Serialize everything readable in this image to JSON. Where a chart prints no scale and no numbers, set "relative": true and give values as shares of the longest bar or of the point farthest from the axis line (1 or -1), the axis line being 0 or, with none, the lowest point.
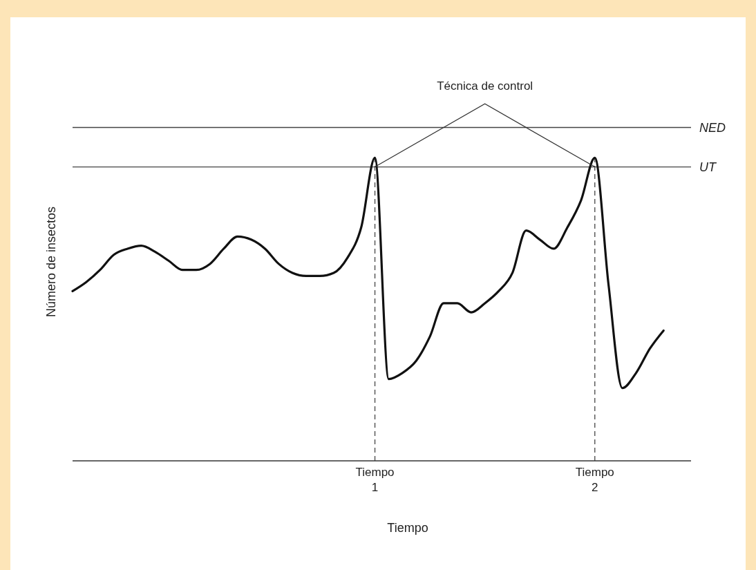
{
  "chart_data": {
    "type": "line",
    "relative": true,
    "xlabel": "Tiempo",
    "ylabel": "Número de insectos",
    "annotations": [
      "Técnica de control"
    ],
    "categories": [
      null,
      null,
      null,
      null,
      null,
      null,
      null,
      null,
      null,
      null,
      null,
      null,
      null,
      null,
      null,
      null,
      null,
      null,
      null,
      null,
      null,
      null,
      "Tiempo 1",
      null,
      null,
      null,
      null,
      null,
      null,
      null,
      null,
      null,
      null,
      null,
      null,
      null,
      null,
      null,
      "Tiempo 2",
      null,
      null,
      null,
      null,
      null,
      null,
      null
    ],
    "series": [
      {
        "color": "#111111",
        "values": [
          0.56,
          0.59,
          0.63,
          0.68,
          0.7,
          0.71,
          0.69,
          0.66,
          0.63,
          0.63,
          0.65,
          0.7,
          0.74,
          0.73,
          0.7,
          0.65,
          0.62,
          0.61,
          0.61,
          0.62,
          0.67,
          0.77,
          1,
          0.27,
          0.29,
          0.33,
          0.41,
          0.52,
          0.52,
          0.49,
          0.52,
          0.56,
          0.62,
          0.76,
          0.73,
          0.7,
          0.77,
          0.86,
          1,
          0.58,
          0.24,
          0.29,
          0.37,
          0.43,
          null,
          null
        ]
      }
    ],
    "ref_lines": [
      {
        "axis": "y",
        "value": 1.1,
        "label": "NED",
        "color": "#444444"
      },
      {
        "axis": "y",
        "value": 0.97,
        "label": "UT",
        "color": "#444444"
      },
      {
        "axis": "x",
        "value": "Tiempo 1",
        "color": "#444444",
        "line_style": "dashed"
      },
      {
        "axis": "x",
        "value": "Tiempo 2",
        "color": "#444444",
        "line_style": "dashed"
      }
    ],
    "grid": false,
    "legend": false,
    "marker": "none",
    "line_style": "solid"
  }
}
